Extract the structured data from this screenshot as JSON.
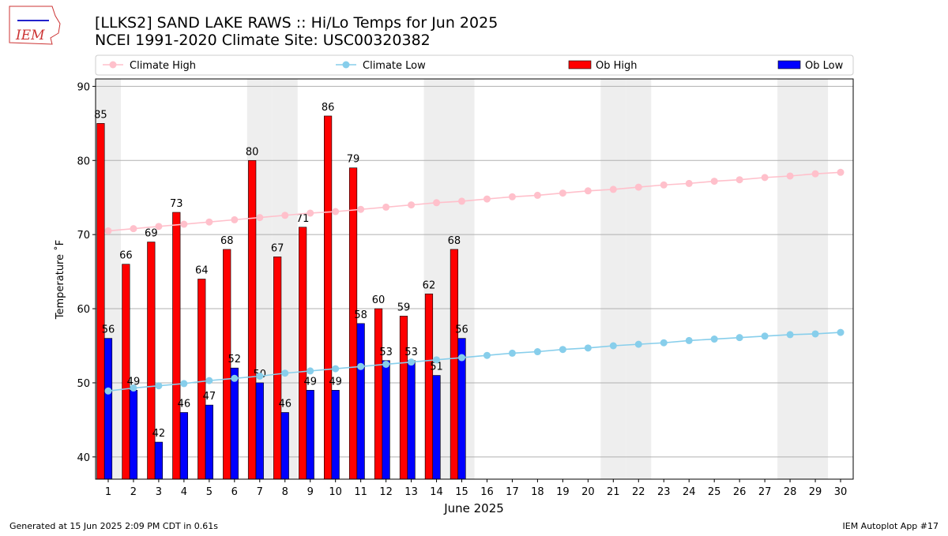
{
  "chart_data": {
    "type": "bar",
    "title": "[LLKS2] SAND LAKE RAWS :: Hi/Lo Temps for Jun 2025",
    "subtitle": "NCEI 1991-2020 Climate Site: USC00320382",
    "xlabel": "June 2025",
    "ylabel": "Temperature ˚F",
    "x": [
      1,
      2,
      3,
      4,
      5,
      6,
      7,
      8,
      9,
      10,
      11,
      12,
      13,
      14,
      15,
      16,
      17,
      18,
      19,
      20,
      21,
      22,
      23,
      24,
      25,
      26,
      27,
      28,
      29,
      30
    ],
    "xlim": [
      0.5,
      30.5
    ],
    "xticks": [
      1,
      2,
      3,
      4,
      5,
      6,
      7,
      8,
      9,
      10,
      11,
      12,
      13,
      14,
      15,
      16,
      17,
      18,
      19,
      20,
      21,
      22,
      23,
      24,
      25,
      26,
      27,
      28,
      29,
      30
    ],
    "ylim": [
      37,
      91
    ],
    "yticks": [
      40,
      50,
      60,
      70,
      80,
      90
    ],
    "grid": true,
    "legend": "top",
    "shaded_days": [
      1,
      7,
      8,
      14,
      15,
      21,
      22,
      28,
      29
    ],
    "series": [
      {
        "name": "Climate High",
        "type": "line",
        "color": "#ffc0cb",
        "values": [
          70.5,
          70.8,
          71.1,
          71.4,
          71.7,
          72.0,
          72.3,
          72.6,
          72.9,
          73.1,
          73.4,
          73.7,
          74.0,
          74.3,
          74.5,
          74.8,
          75.1,
          75.3,
          75.6,
          75.9,
          76.1,
          76.4,
          76.7,
          76.9,
          77.2,
          77.4,
          77.7,
          77.9,
          78.2,
          78.4
        ]
      },
      {
        "name": "Climate Low",
        "type": "line",
        "color": "#87ceeb",
        "values": [
          48.9,
          49.3,
          49.6,
          49.9,
          50.3,
          50.6,
          50.9,
          51.3,
          51.6,
          51.9,
          52.2,
          52.5,
          52.8,
          53.1,
          53.4,
          53.7,
          54.0,
          54.2,
          54.5,
          54.7,
          55.0,
          55.2,
          55.4,
          55.7,
          55.9,
          56.1,
          56.3,
          56.5,
          56.6,
          56.8
        ]
      },
      {
        "name": "Ob High",
        "type": "bar",
        "color": "#ff0000",
        "values": [
          85,
          66,
          69,
          73,
          64,
          68,
          80,
          67,
          71,
          86,
          79,
          60,
          59,
          62,
          68,
          null,
          null,
          null,
          null,
          null,
          null,
          null,
          null,
          null,
          null,
          null,
          null,
          null,
          null,
          null
        ]
      },
      {
        "name": "Ob Low",
        "type": "bar",
        "color": "#0000ff",
        "values": [
          56,
          49,
          42,
          46,
          47,
          52,
          50,
          46,
          49,
          49,
          58,
          53,
          53,
          51,
          56,
          null,
          null,
          null,
          null,
          null,
          null,
          null,
          null,
          null,
          null,
          null,
          null,
          null,
          null,
          null
        ]
      }
    ]
  },
  "logo_text": "IEM",
  "footer_left": "Generated at 15 Jun 2025 2:09 PM CDT in 0.61s",
  "footer_right": "IEM Autoplot App #17"
}
